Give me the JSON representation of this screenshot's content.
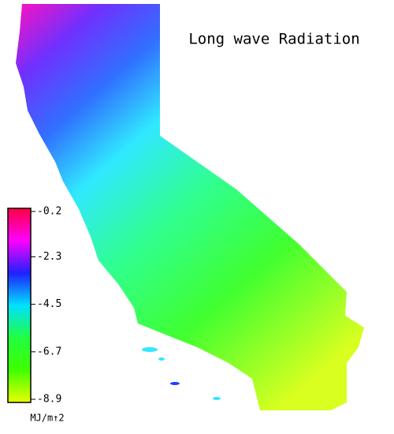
{
  "title": "Long wave Radiation",
  "colorbar": {
    "ticks": [
      -0.2,
      -2.3,
      -4.5,
      -6.7,
      -8.9
    ],
    "clim": [
      -8.9,
      -0.2
    ],
    "label": "MJ/m↑2",
    "colors": [
      "#ff0040",
      "#ff00ff",
      "#2020ff",
      "#00e0ff",
      "#20ff40",
      "#40ff00",
      "#e8ff00"
    ]
  }
}
